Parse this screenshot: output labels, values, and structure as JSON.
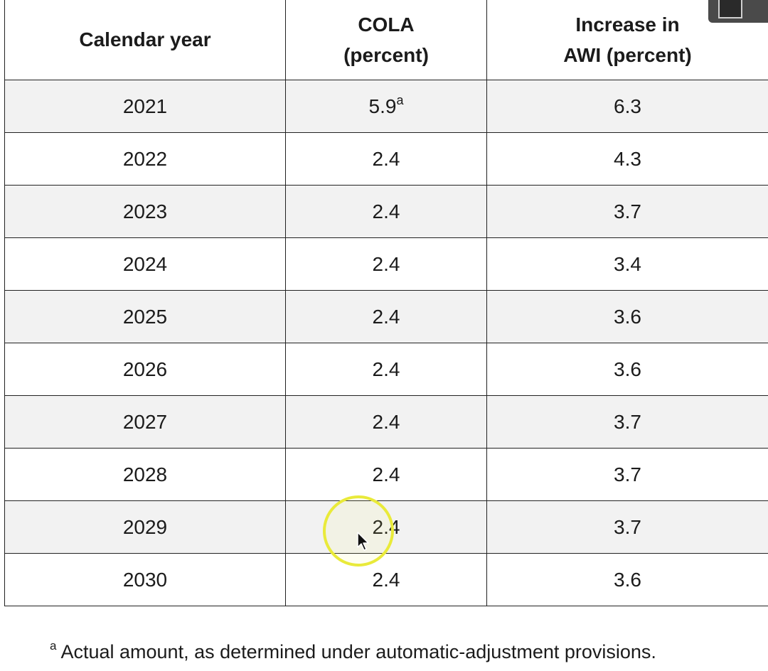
{
  "table": {
    "headers": {
      "year": "Calendar year",
      "cola_line1": "COLA",
      "cola_line2": "(percent)",
      "awi_line1": "Increase in",
      "awi_line2": "AWI (percent)"
    },
    "rows": [
      {
        "year": "2021",
        "cola": "5.9",
        "cola_note": "a",
        "awi": "6.3"
      },
      {
        "year": "2022",
        "cola": "2.4",
        "awi": "4.3"
      },
      {
        "year": "2023",
        "cola": "2.4",
        "awi": "3.7"
      },
      {
        "year": "2024",
        "cola": "2.4",
        "awi": "3.4"
      },
      {
        "year": "2025",
        "cola": "2.4",
        "awi": "3.6"
      },
      {
        "year": "2026",
        "cola": "2.4",
        "awi": "3.6"
      },
      {
        "year": "2027",
        "cola": "2.4",
        "awi": "3.7"
      },
      {
        "year": "2028",
        "cola": "2.4",
        "awi": "3.7"
      },
      {
        "year": "2029",
        "cola": "2.4",
        "awi": "3.7"
      },
      {
        "year": "2030",
        "cola": "2.4",
        "awi": "3.6"
      }
    ]
  },
  "footnote": {
    "mark": "a",
    "text": "Actual amount, as determined under automatic-adjustment provisions."
  },
  "colors": {
    "striped_row": "#f2f2f2",
    "highlight_ring": "#e9ea3a",
    "border": "#222222"
  }
}
